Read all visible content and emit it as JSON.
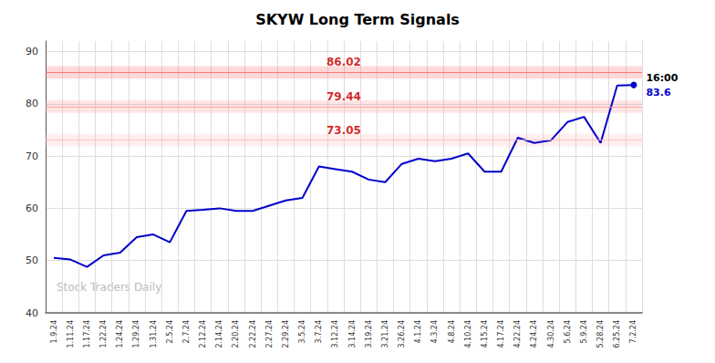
{
  "chart_data": {
    "type": "line",
    "title": "SKYW Long Term Signals",
    "color": "#0000cc",
    "categories": [
      "1.9.24",
      "1.11.24",
      "1.17.24",
      "1.22.24",
      "1.24.24",
      "1.29.24",
      "1.31.24",
      "2.5.24",
      "2.7.24",
      "2.12.24",
      "2.14.24",
      "2.20.24",
      "2.22.24",
      "2.27.24",
      "2.29.24",
      "3.5.24",
      "3.7.24",
      "3.12.24",
      "3.14.24",
      "3.19.24",
      "3.21.24",
      "3.26.24",
      "4.1.24",
      "4.3.24",
      "4.8.24",
      "4.10.24",
      "4.15.24",
      "4.17.24",
      "4.22.24",
      "4.24.24",
      "4.30.24",
      "5.6.24",
      "5.9.24",
      "5.28.24",
      "6.25.24",
      "7.2.24"
    ],
    "values": [
      50.5,
      50.2,
      48.8,
      51.0,
      51.5,
      54.5,
      55.0,
      53.5,
      59.5,
      59.7,
      60.0,
      59.5,
      59.5,
      60.5,
      61.5,
      62.0,
      68.0,
      67.5,
      67.0,
      65.5,
      65.0,
      68.5,
      69.5,
      69.0,
      69.5,
      70.5,
      67.0,
      67.0,
      73.5,
      72.5,
      73.0,
      76.5,
      77.5,
      72.5,
      83.5,
      83.6
    ],
    "hlines": [
      {
        "value": 86.02,
        "color": "#ff6666",
        "band": [
          84.82,
          87.22
        ]
      },
      {
        "value": 79.44,
        "color": "#ff9999",
        "band": [
          78.24,
          80.64
        ]
      },
      {
        "value": 73.05,
        "color": "#ffbbbb",
        "band": [
          71.85,
          74.25
        ]
      }
    ],
    "annotations": [
      {
        "text": "16:00",
        "color": "#000000"
      },
      {
        "text": "83.6",
        "color": "#0000cc"
      }
    ],
    "watermark": "Stock Traders Daily",
    "ylim": [
      40,
      92
    ],
    "yticks": [
      40,
      50,
      60,
      70,
      80,
      90
    ],
    "grid": true
  }
}
